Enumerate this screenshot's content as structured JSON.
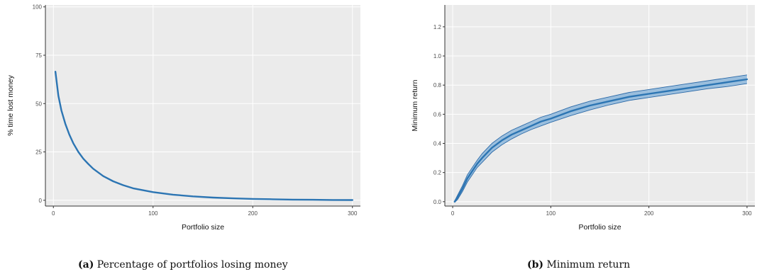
{
  "colors": {
    "panel": "#ebebeb",
    "grid": "#ffffff",
    "line": "#2c75b3",
    "band": "#6fa6d6",
    "band_edge": "#2c6aa8"
  },
  "panels": [
    {
      "label": "(a)",
      "text": "Percentage of portfolios losing money"
    },
    {
      "label": "(b)",
      "text": "Minimum return"
    }
  ],
  "chart_data": [
    {
      "type": "line",
      "xlabel": "Portfolio size",
      "ylabel": "% time lost money",
      "xlim": [
        -8,
        308
      ],
      "ylim": [
        -3,
        101
      ],
      "xticks": [
        0,
        100,
        200,
        300
      ],
      "yticks": [
        0,
        25,
        50,
        75,
        100
      ],
      "grid": true,
      "series": [
        {
          "x": [
            2,
            5,
            8,
            12,
            16,
            20,
            25,
            30,
            35,
            40,
            50,
            60,
            70,
            80,
            100,
            120,
            140,
            160,
            180,
            200,
            220,
            240,
            260,
            280,
            300
          ],
          "y": [
            66.5,
            54,
            46.5,
            39.5,
            34,
            29.5,
            25,
            21.5,
            18.8,
            16.3,
            12.5,
            9.8,
            7.8,
            6.2,
            4.2,
            2.9,
            2,
            1.4,
            1,
            0.7,
            0.5,
            0.35,
            0.25,
            0.15,
            0.1
          ]
        }
      ]
    },
    {
      "type": "area",
      "xlabel": "Portfolio size",
      "ylabel": "Minimum return",
      "xlim": [
        -8,
        308
      ],
      "ylim": [
        -0.03,
        1.35
      ],
      "xticks": [
        0,
        100,
        200,
        300
      ],
      "yticks": [
        0.0,
        0.2,
        0.4,
        0.6,
        0.8,
        1.0,
        1.2
      ],
      "grid": true,
      "series": [
        {
          "x": [
            2,
            5,
            10,
            15,
            20,
            25,
            30,
            40,
            50,
            60,
            70,
            80,
            90,
            100,
            120,
            140,
            160,
            180,
            200,
            220,
            240,
            260,
            280,
            300
          ],
          "y": [
            0.0,
            0.03,
            0.09,
            0.16,
            0.21,
            0.26,
            0.3,
            0.37,
            0.42,
            0.46,
            0.49,
            0.52,
            0.55,
            0.57,
            0.62,
            0.66,
            0.69,
            0.72,
            0.74,
            0.76,
            0.78,
            0.8,
            0.82,
            0.84
          ],
          "lower": [
            -0.005,
            0.015,
            0.07,
            0.135,
            0.185,
            0.235,
            0.27,
            0.34,
            0.39,
            0.43,
            0.465,
            0.495,
            0.52,
            0.545,
            0.59,
            0.63,
            0.665,
            0.695,
            0.715,
            0.735,
            0.755,
            0.775,
            0.79,
            0.81
          ],
          "upper": [
            0.005,
            0.045,
            0.11,
            0.185,
            0.235,
            0.285,
            0.33,
            0.4,
            0.45,
            0.49,
            0.52,
            0.55,
            0.58,
            0.6,
            0.65,
            0.69,
            0.72,
            0.75,
            0.77,
            0.79,
            0.81,
            0.83,
            0.85,
            0.87
          ]
        }
      ]
    }
  ]
}
